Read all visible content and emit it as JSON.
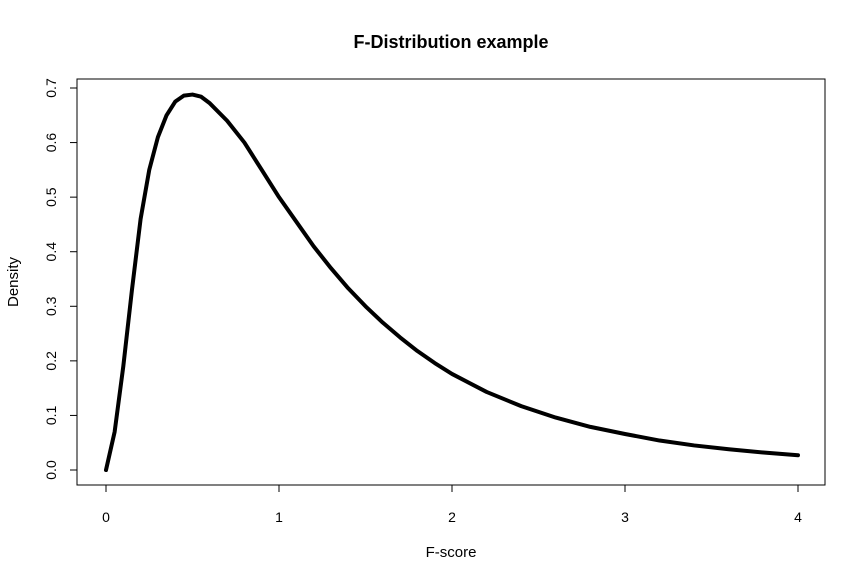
{
  "chart_data": {
    "type": "line",
    "title": "F-Distribution example",
    "xlabel": "F-score",
    "ylabel": "Density",
    "xlim": [
      0,
      4
    ],
    "ylim": [
      0,
      0.7
    ],
    "x_ticks": [
      "0",
      "1",
      "2",
      "3",
      "4"
    ],
    "y_ticks": [
      "0.0",
      "0.1",
      "0.2",
      "0.3",
      "0.4",
      "0.5",
      "0.6",
      "0.7"
    ],
    "grid": false,
    "line_color": "#000000",
    "series": [
      {
        "x": [
          0.0,
          0.05,
          0.1,
          0.15,
          0.2,
          0.25,
          0.3,
          0.35,
          0.4,
          0.45,
          0.5,
          0.55,
          0.6,
          0.7,
          0.8,
          0.9,
          1.0,
          1.1,
          1.2,
          1.3,
          1.4,
          1.5,
          1.6,
          1.7,
          1.8,
          1.9,
          2.0,
          2.2,
          2.4,
          2.6,
          2.8,
          3.0,
          3.2,
          3.4,
          3.6,
          3.8,
          4.0
        ],
        "values": [
          0.0,
          0.07,
          0.19,
          0.33,
          0.46,
          0.55,
          0.61,
          0.65,
          0.675,
          0.686,
          0.688,
          0.684,
          0.672,
          0.64,
          0.6,
          0.55,
          0.5,
          0.455,
          0.41,
          0.37,
          0.333,
          0.3,
          0.27,
          0.243,
          0.218,
          0.196,
          0.176,
          0.143,
          0.117,
          0.096,
          0.079,
          0.066,
          0.054,
          0.045,
          0.038,
          0.032,
          0.027
        ]
      }
    ]
  }
}
